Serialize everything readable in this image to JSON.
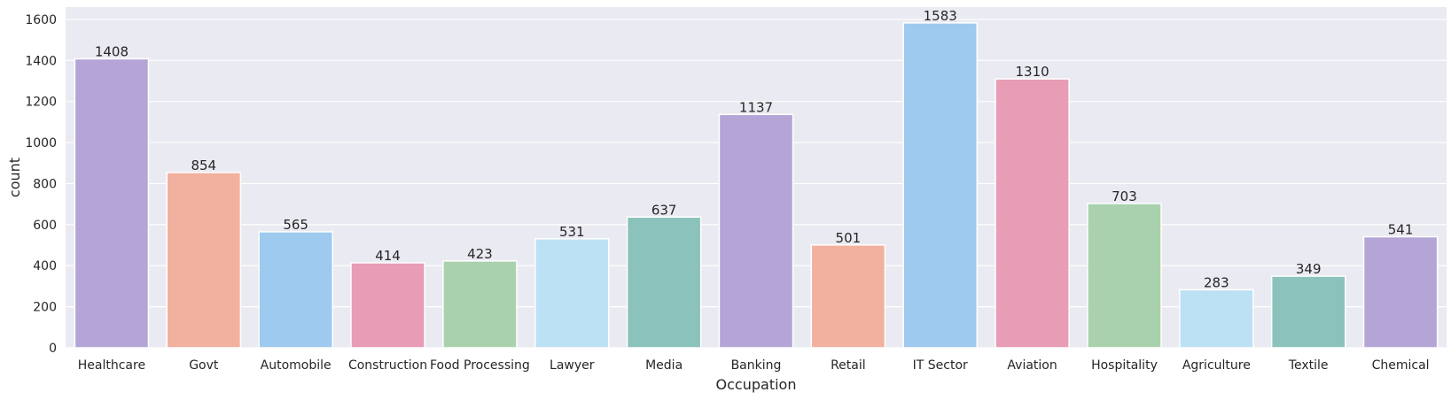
{
  "chart_data": {
    "type": "bar",
    "title": "",
    "xlabel": "Occupation",
    "ylabel": "count",
    "ylim": [
      0,
      1660
    ],
    "yticks": [
      0,
      200,
      400,
      600,
      800,
      1000,
      1200,
      1400,
      1600
    ],
    "grid": true,
    "legend": "none",
    "categories": [
      "Healthcare",
      "Govt",
      "Automobile",
      "Construction",
      "Food Processing",
      "Lawyer",
      "Media",
      "Banking",
      "Retail",
      "IT Sector",
      "Aviation",
      "Hospitality",
      "Agriculture",
      "Textile",
      "Chemical"
    ],
    "values": [
      1408,
      854,
      565,
      414,
      423,
      531,
      637,
      1137,
      501,
      1583,
      1310,
      703,
      283,
      349,
      541
    ],
    "colors": [
      "#b4a5d6",
      "#f2b19e",
      "#9dcaee",
      "#e89cb5",
      "#aad1ad",
      "#bde1f4",
      "#8bc3bc",
      "#b4a5d6",
      "#f2b19e",
      "#9dcaee",
      "#e89cb5",
      "#aad1ad",
      "#bde1f4",
      "#8bc3bc",
      "#b4a5d6"
    ],
    "background_color": "#eaeaf2",
    "grid_color": "#ffffff"
  }
}
